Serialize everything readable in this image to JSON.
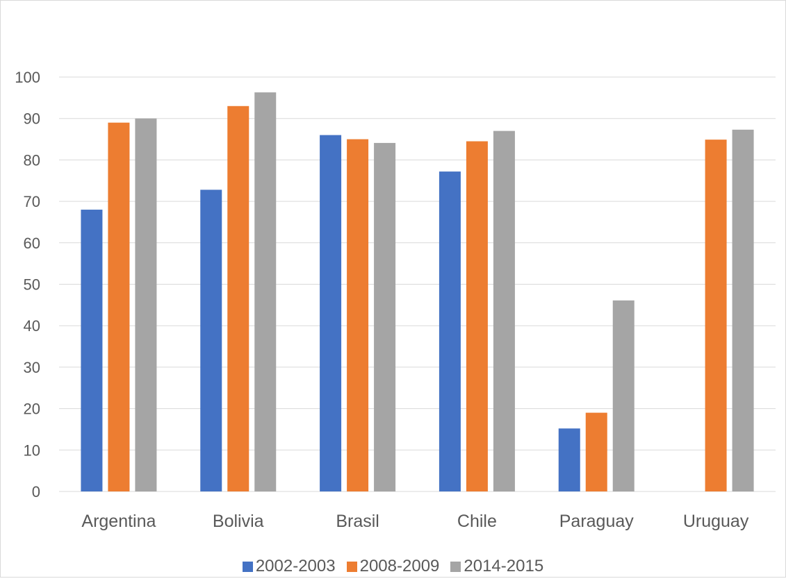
{
  "chart_data": {
    "type": "bar",
    "title": "",
    "xlabel": "",
    "ylabel": "",
    "categories": [
      "Argentina",
      "Bolivia",
      "Brasil",
      "Chile",
      "Paraguay",
      "Uruguay"
    ],
    "series": [
      {
        "name": "2002-2003",
        "color": "#4472C4",
        "values": [
          68,
          72.8,
          86,
          77.2,
          15.2,
          null
        ]
      },
      {
        "name": "2008-2009",
        "color": "#ED7D31",
        "values": [
          89,
          93,
          85,
          84.5,
          19,
          84.9
        ]
      },
      {
        "name": "2014-2015",
        "color": "#A5A5A5",
        "values": [
          90,
          96.3,
          84.1,
          87,
          46.1,
          87.3
        ]
      }
    ],
    "ylim": [
      0,
      100
    ],
    "yticks": [
      0,
      10,
      20,
      30,
      40,
      50,
      60,
      70,
      80,
      90,
      100
    ],
    "grid": true,
    "legend": "bottom"
  }
}
